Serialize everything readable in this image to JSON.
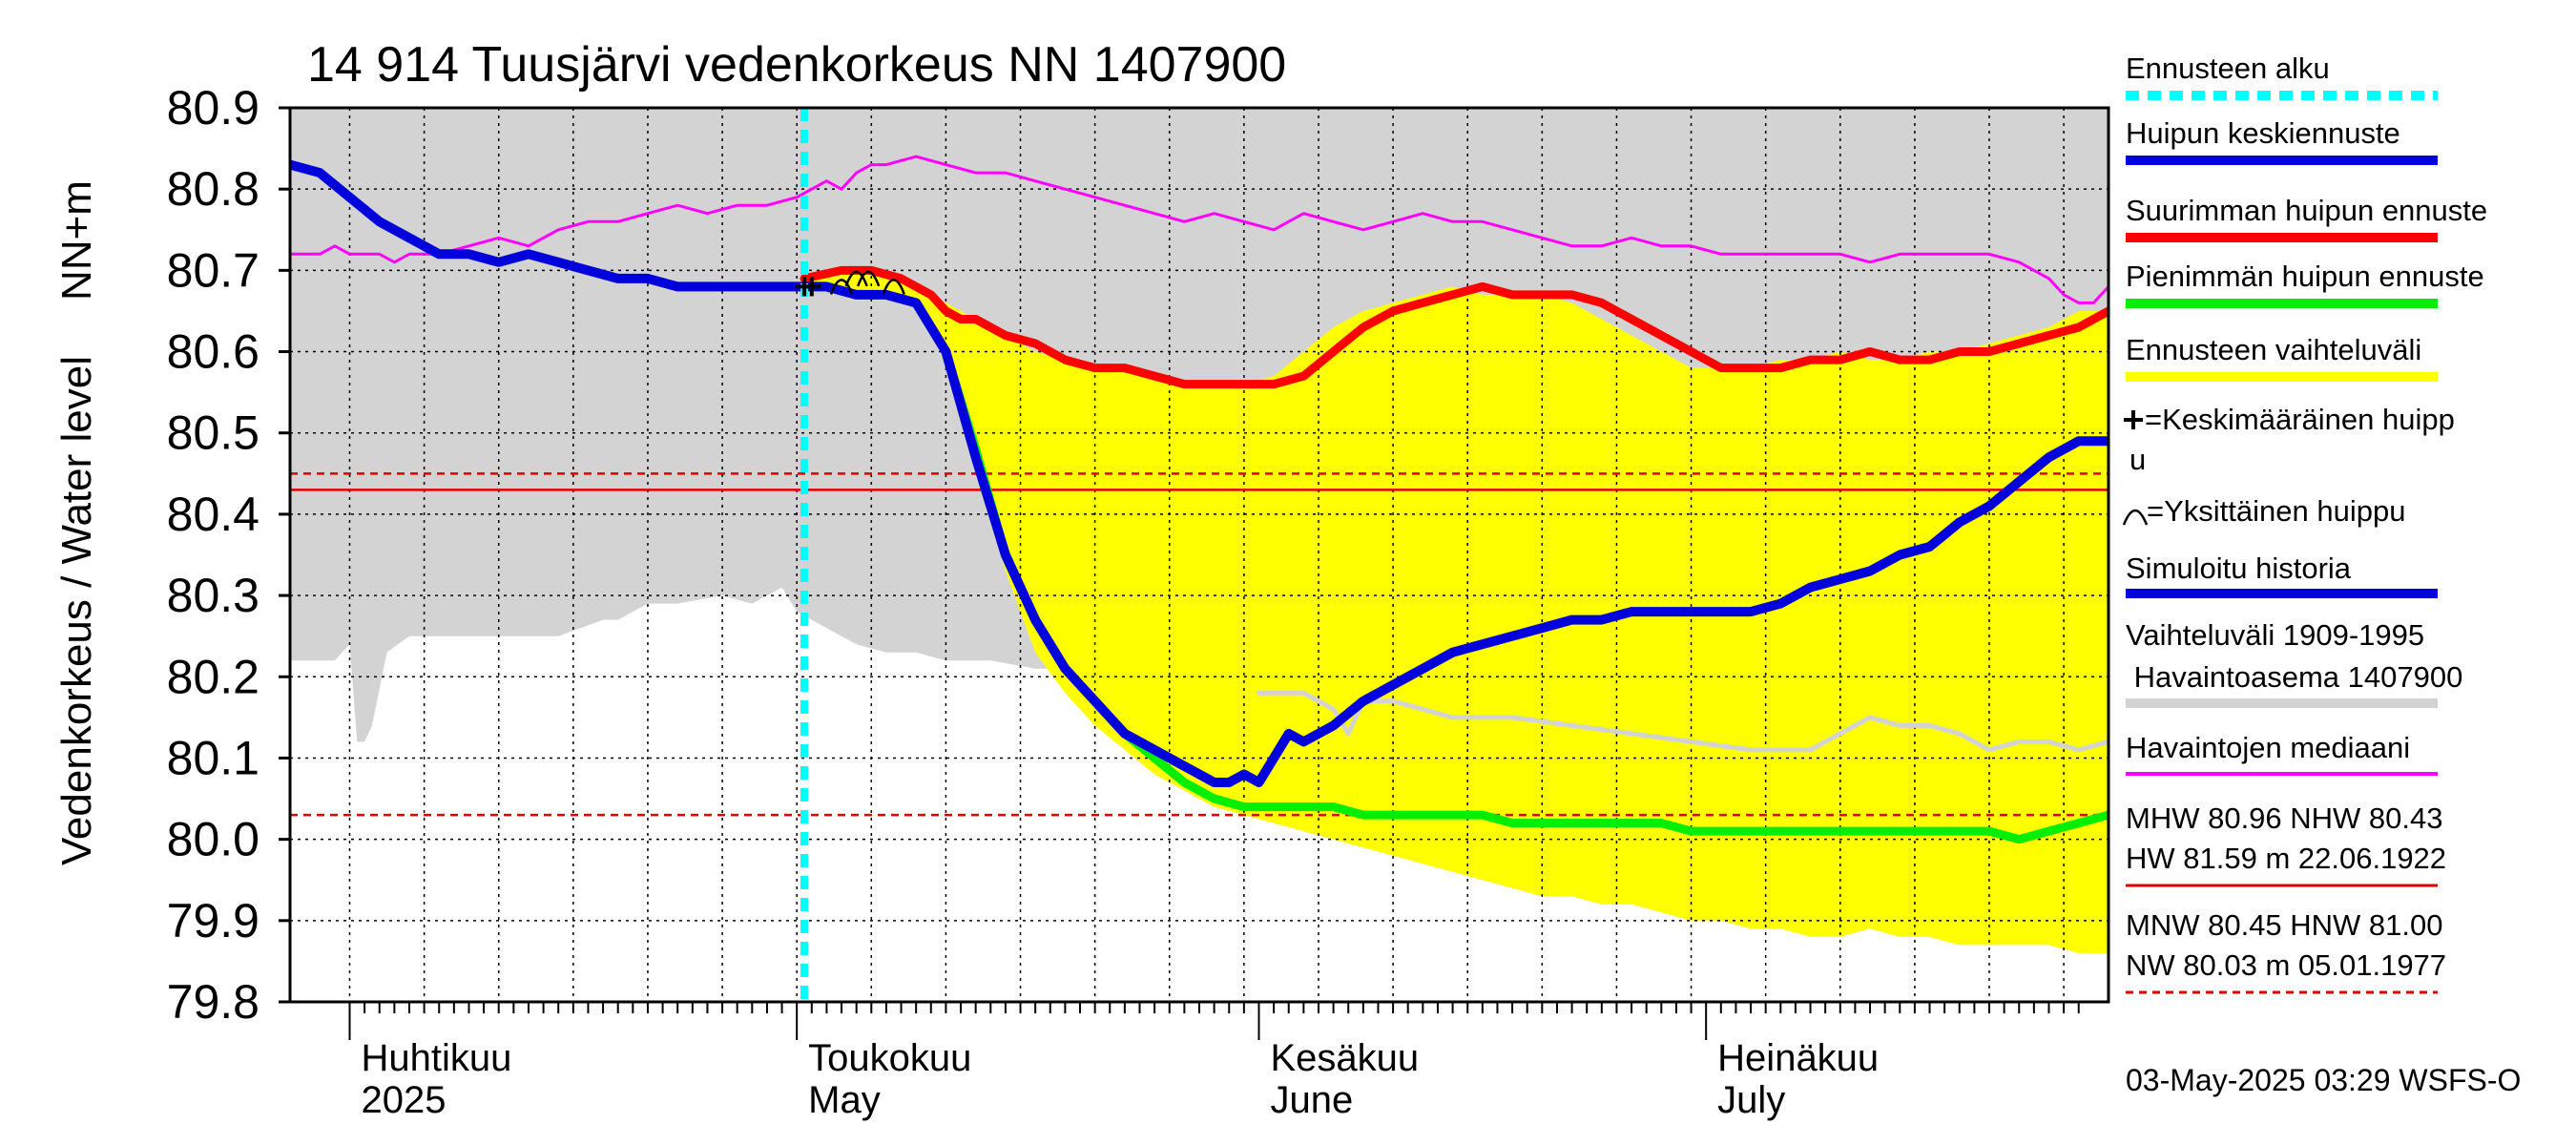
{
  "chart_data": {
    "type": "line",
    "title": "14 914 Tuusjärvi vedenkorkeus NN 1407900",
    "ylabel_left": "Vedenkorkeus / Water level",
    "ylabel_right": "NN+m",
    "ylim": [
      79.8,
      80.9
    ],
    "y_ticks": [
      "80.9",
      "80.8",
      "80.7",
      "80.6",
      "80.5",
      "80.4",
      "80.3",
      "80.2",
      "80.1",
      "80.0",
      "79.9",
      "79.8"
    ],
    "xlim": [
      -4,
      118
    ],
    "x_unit": "days since 1 April 2025",
    "month_labels": [
      {
        "fi": "Huhtikuu",
        "en": "2025",
        "day": 0
      },
      {
        "fi": "Toukokuu",
        "en": "May",
        "day": 30
      },
      {
        "fi": "Kesäkuu",
        "en": "June",
        "day": 61
      },
      {
        "fi": "Heinäkuu",
        "en": "July",
        "day": 91
      }
    ],
    "forecast_start_day": 30.5,
    "reference_lines": [
      {
        "name": "HW observed max",
        "value": 80.43,
        "style": "solid",
        "color": "#e00000"
      },
      {
        "name": "MNW/HNW band",
        "value": 80.45,
        "style": "dashed",
        "color": "#e00000"
      },
      {
        "name": "NW observed min",
        "value": 80.03,
        "style": "dashed",
        "color": "#e00000"
      }
    ],
    "history_range": {
      "name": "Vaihteluväli 1909-1995",
      "color": "#d3d3d3",
      "x": [
        -4,
        -1,
        0,
        0.5,
        1,
        1.5,
        2.5,
        4,
        5,
        6,
        7,
        10,
        14,
        17,
        18,
        19,
        20,
        22,
        25,
        27,
        28,
        29,
        30,
        31,
        32,
        33,
        34,
        36,
        38,
        40,
        43,
        46,
        50,
        52,
        54,
        56,
        58,
        60,
        61,
        62,
        63,
        64,
        65,
        66,
        67,
        68,
        69,
        70,
        72,
        74,
        76,
        78,
        80,
        82,
        84,
        85,
        86,
        88,
        90,
        92,
        94,
        96,
        98,
        100,
        102,
        104,
        105,
        106,
        108,
        110,
        112,
        114,
        116,
        118
      ],
      "upper": [
        80.9,
        80.9,
        80.9,
        80.9,
        80.9,
        80.9,
        80.9,
        80.9,
        80.9,
        80.9,
        80.9,
        80.9,
        80.9,
        80.9,
        80.9,
        80.9,
        80.9,
        80.9,
        80.9,
        80.9,
        80.9,
        80.9,
        80.9,
        80.9,
        80.9,
        80.9,
        80.9,
        80.9,
        80.9,
        80.9,
        80.9,
        80.9,
        80.9,
        80.9,
        80.9,
        80.9,
        80.9,
        80.9,
        80.9,
        80.9,
        80.9,
        80.9,
        80.9,
        80.9,
        80.9,
        80.9,
        80.9,
        80.9,
        80.9,
        80.9,
        80.9,
        80.9,
        80.9,
        80.9,
        80.9,
        80.9,
        80.9,
        80.9,
        80.9,
        80.9,
        80.9,
        80.9,
        80.9,
        80.9,
        80.9,
        80.9,
        80.9,
        80.9,
        80.9,
        80.9,
        80.9,
        80.9,
        80.9,
        80.9
      ],
      "lower": [
        80.22,
        80.22,
        80.24,
        80.12,
        80.12,
        80.14,
        80.23,
        80.25,
        80.25,
        80.25,
        80.25,
        80.25,
        80.25,
        80.27,
        80.27,
        80.28,
        80.29,
        80.29,
        80.3,
        80.29,
        80.3,
        80.31,
        80.28,
        80.27,
        80.26,
        80.25,
        80.24,
        80.23,
        80.23,
        80.22,
        80.22,
        80.21,
        80.21,
        80.21,
        80.21,
        80.21,
        80.2,
        80.2,
        80.19,
        80.19,
        80.19,
        80.19,
        80.19,
        80.18,
        80.17,
        80.16,
        80.15,
        80.14,
        80.13,
        80.12,
        80.12,
        80.12,
        80.12,
        80.11,
        80.11,
        80.11,
        80.11,
        80.11,
        80.11,
        80.11,
        80.11,
        80.11,
        80.11,
        80.11,
        80.11,
        80.11,
        80.11,
        80.11,
        80.11,
        80.11,
        80.1,
        80.1,
        80.1,
        80.1
      ]
    },
    "series": [
      {
        "name": "Havaintojen mediaani",
        "color": "#ff00ff",
        "x": [
          -4,
          -2,
          -1,
          0,
          1,
          2,
          3,
          4,
          5,
          6,
          8,
          10,
          12,
          14,
          16,
          18,
          20,
          22,
          24,
          26,
          28,
          30,
          31,
          32,
          33,
          34,
          35,
          36,
          38,
          40,
          42,
          44,
          46,
          48,
          50,
          52,
          54,
          56,
          58,
          60,
          62,
          64,
          66,
          68,
          70,
          72,
          74,
          76,
          78,
          80,
          82,
          84,
          86,
          88,
          90,
          92,
          94,
          96,
          98,
          100,
          102,
          104,
          106,
          108,
          110,
          112,
          114,
          115,
          116,
          117,
          118
        ],
        "y": [
          80.72,
          80.72,
          80.73,
          80.72,
          80.72,
          80.72,
          80.71,
          80.72,
          80.72,
          80.72,
          80.73,
          80.74,
          80.73,
          80.75,
          80.76,
          80.76,
          80.77,
          80.78,
          80.77,
          80.78,
          80.78,
          80.79,
          80.8,
          80.81,
          80.8,
          80.82,
          80.83,
          80.83,
          80.84,
          80.83,
          80.82,
          80.82,
          80.81,
          80.8,
          80.79,
          80.78,
          80.77,
          80.76,
          80.77,
          80.76,
          80.75,
          80.77,
          80.76,
          80.75,
          80.76,
          80.77,
          80.76,
          80.76,
          80.75,
          80.74,
          80.73,
          80.73,
          80.74,
          80.73,
          80.73,
          80.72,
          80.72,
          80.72,
          80.72,
          80.72,
          80.71,
          80.72,
          80.72,
          80.72,
          80.72,
          80.71,
          80.69,
          80.67,
          80.66,
          80.66,
          80.68
        ]
      },
      {
        "name": "Havaintoasema median (grey)",
        "color": "#d3d3d3",
        "x": [
          61,
          64,
          66,
          67,
          68,
          70,
          74,
          78,
          82,
          86,
          90,
          94,
          98,
          102,
          104,
          106,
          108,
          110,
          112,
          114,
          116,
          118
        ],
        "y": [
          80.18,
          80.18,
          80.16,
          80.13,
          80.17,
          80.17,
          80.15,
          80.15,
          80.14,
          80.13,
          80.12,
          80.11,
          80.11,
          80.15,
          80.14,
          80.14,
          80.13,
          80.11,
          80.12,
          80.12,
          80.11,
          80.12
        ]
      },
      {
        "name": "Ennusteen vaihteluväli",
        "color": "#ffff00",
        "type": "area",
        "x": [
          30.5,
          33,
          36,
          38,
          40,
          42,
          44,
          46,
          48,
          50,
          52,
          54,
          56,
          58,
          60,
          62,
          64,
          66,
          68,
          70,
          72,
          74,
          76,
          78,
          80,
          82,
          84,
          86,
          88,
          90,
          92,
          94,
          96,
          98,
          100,
          102,
          104,
          106,
          108,
          110,
          112,
          114,
          116,
          118
        ],
        "upper": [
          80.69,
          80.7,
          80.69,
          80.68,
          80.66,
          80.64,
          80.62,
          80.6,
          80.59,
          80.58,
          80.58,
          80.57,
          80.56,
          80.56,
          80.56,
          80.57,
          80.6,
          80.63,
          80.65,
          80.66,
          80.67,
          80.68,
          80.67,
          80.67,
          80.67,
          80.66,
          80.64,
          80.62,
          80.6,
          80.58,
          80.58,
          80.58,
          80.59,
          80.59,
          80.6,
          80.59,
          80.59,
          80.6,
          80.6,
          80.61,
          80.62,
          80.63,
          80.65,
          80.65
        ],
        "lower": [
          80.68,
          80.67,
          80.67,
          80.66,
          80.6,
          80.45,
          80.33,
          80.23,
          80.18,
          80.14,
          80.11,
          80.08,
          80.06,
          80.04,
          80.03,
          80.02,
          80.01,
          80.0,
          79.99,
          79.98,
          79.97,
          79.96,
          79.95,
          79.94,
          79.93,
          79.93,
          79.92,
          79.92,
          79.91,
          79.9,
          79.9,
          79.89,
          79.89,
          79.88,
          79.88,
          79.89,
          79.88,
          79.88,
          79.87,
          79.87,
          79.87,
          79.87,
          79.86,
          79.86
        ]
      },
      {
        "name": "Suurimman huipun ennuste",
        "color": "#ff0000",
        "x": [
          30.5,
          33,
          35,
          37,
          38,
          39,
          40,
          41,
          42,
          44,
          46,
          48,
          50,
          52,
          54,
          56,
          58,
          60,
          62,
          64,
          66,
          68,
          70,
          72,
          74,
          76,
          78,
          80,
          82,
          84,
          86,
          88,
          90,
          92,
          94,
          96,
          98,
          100,
          102,
          104,
          106,
          108,
          110,
          112,
          114,
          116,
          118
        ],
        "y": [
          80.69,
          80.7,
          80.7,
          80.69,
          80.68,
          80.67,
          80.65,
          80.64,
          80.64,
          80.62,
          80.61,
          80.59,
          80.58,
          80.58,
          80.57,
          80.56,
          80.56,
          80.56,
          80.56,
          80.57,
          80.6,
          80.63,
          80.65,
          80.66,
          80.67,
          80.68,
          80.67,
          80.67,
          80.67,
          80.66,
          80.64,
          80.62,
          80.6,
          80.58,
          80.58,
          80.58,
          80.59,
          80.59,
          80.6,
          80.59,
          80.59,
          80.6,
          80.6,
          80.61,
          80.62,
          80.63,
          80.65
        ]
      },
      {
        "name": "Pienimmän huipun ennuste",
        "color": "#00ee00",
        "x": [
          30.5,
          32,
          34,
          36,
          38,
          40,
          42,
          44,
          46,
          48,
          50,
          52,
          54,
          56,
          58,
          60,
          62,
          64,
          66,
          68,
          70,
          72,
          74,
          76,
          78,
          80,
          82,
          84,
          86,
          88,
          90,
          92,
          94,
          96,
          98,
          100,
          102,
          104,
          106,
          108,
          110,
          112,
          114,
          116,
          118
        ],
        "y": [
          80.68,
          80.68,
          80.67,
          80.67,
          80.66,
          80.6,
          80.48,
          80.35,
          80.27,
          80.21,
          80.17,
          80.13,
          80.1,
          80.07,
          80.05,
          80.04,
          80.04,
          80.04,
          80.04,
          80.03,
          80.03,
          80.03,
          80.03,
          80.03,
          80.02,
          80.02,
          80.02,
          80.02,
          80.02,
          80.02,
          80.01,
          80.01,
          80.01,
          80.01,
          80.01,
          80.01,
          80.01,
          80.01,
          80.01,
          80.01,
          80.01,
          80.0,
          80.01,
          80.02,
          80.03
        ]
      },
      {
        "name": "Huipun keskiennuste / Simuloitu historia",
        "color": "#0000dd",
        "x": [
          -4,
          -2,
          0,
          2,
          4,
          6,
          8,
          10,
          12,
          14,
          16,
          18,
          20,
          22,
          24,
          26,
          28,
          30,
          32,
          34,
          36,
          38,
          40,
          42,
          44,
          46,
          48,
          50,
          52,
          54,
          56,
          58,
          59,
          60,
          61,
          62,
          63,
          64,
          65,
          66,
          68,
          70,
          72,
          74,
          76,
          78,
          80,
          82,
          84,
          86,
          88,
          90,
          92,
          94,
          96,
          98,
          100,
          102,
          104,
          106,
          108,
          110,
          112,
          114,
          116,
          118
        ],
        "y": [
          80.83,
          80.82,
          80.79,
          80.76,
          80.74,
          80.72,
          80.72,
          80.71,
          80.72,
          80.71,
          80.7,
          80.69,
          80.69,
          80.68,
          80.68,
          80.68,
          80.68,
          80.68,
          80.68,
          80.67,
          80.67,
          80.66,
          80.6,
          80.47,
          80.35,
          80.27,
          80.21,
          80.17,
          80.13,
          80.11,
          80.09,
          80.07,
          80.07,
          80.08,
          80.07,
          80.1,
          80.13,
          80.12,
          80.13,
          80.14,
          80.17,
          80.19,
          80.21,
          80.23,
          80.24,
          80.25,
          80.26,
          80.27,
          80.27,
          80.28,
          80.28,
          80.28,
          80.28,
          80.28,
          80.29,
          80.31,
          80.32,
          80.33,
          80.35,
          80.36,
          80.39,
          80.41,
          80.44,
          80.47,
          80.49,
          80.49
        ]
      }
    ],
    "peak_markers": {
      "average_peak": {
        "symbol": "+",
        "x": [
          30.5,
          31
        ],
        "y": [
          80.68,
          80.68
        ]
      },
      "single_peaks": {
        "symbol": "arc",
        "x": [
          33,
          34,
          34.8,
          36.5
        ],
        "y": [
          80.68,
          80.69,
          80.69,
          80.68
        ]
      }
    }
  },
  "legend": {
    "items": [
      {
        "label": "Ennusteen alku",
        "color": "#00ffff",
        "style": "dashed"
      },
      {
        "label": "Huipun keskiennuste",
        "color": "#0000dd",
        "style": "solid"
      },
      {
        "label": "Suurimman huipun ennuste",
        "color": "#ff0000",
        "style": "solid"
      },
      {
        "label": "Pienimmän huipun ennuste",
        "color": "#00ee00",
        "style": "solid"
      },
      {
        "label": "Ennusteen vaihteluväli",
        "color": "#ffff00",
        "style": "solid"
      }
    ],
    "avg_peak_line1": "=Keskimääräinen huipp",
    "avg_peak_line2": "u",
    "single_peak": "=Yksittäinen huippu",
    "simulated": {
      "label": "Simuloitu historia",
      "color": "#0000dd"
    },
    "range_line1": "Vaihteluväli 1909-1995",
    "range_line2": " Havaintoasema 1407900",
    "range_color": "#d3d3d3",
    "median": {
      "label": "Havaintojen mediaani",
      "color": "#ff00ff"
    },
    "stats1_line1": "MHW  80.96 NHW  80.43",
    "stats1_line2": "HW  81.59 m 22.06.1922",
    "stats2_line1": "MNW  80.45 HNW  81.00",
    "stats2_line2": "NW  80.03 m 05.01.1977"
  },
  "footer": "03-May-2025 03:29 WSFS-O"
}
